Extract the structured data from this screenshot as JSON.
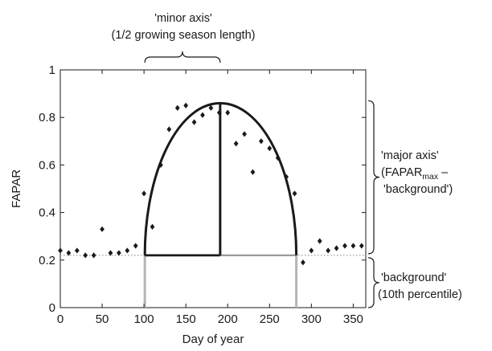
{
  "chart_data": {
    "type": "scatter",
    "xlabel": "Day of year",
    "ylabel": "FAPAR",
    "xlim": [
      0,
      365
    ],
    "ylim": [
      0,
      1
    ],
    "x_ticks": [
      "0",
      "50",
      "100",
      "150",
      "200",
      "250",
      "300",
      "350"
    ],
    "y_ticks": [
      "0",
      "0.2",
      "0.4",
      "0.6",
      "0.8",
      "1"
    ],
    "grid": false,
    "series": [
      {
        "marker": "diamond",
        "color": "#1a1a1a",
        "x": [
          0,
          10,
          20,
          30,
          40,
          50,
          60,
          70,
          80,
          90,
          100,
          110,
          120,
          130,
          140,
          150,
          160,
          170,
          180,
          190,
          200,
          210,
          220,
          230,
          240,
          250,
          260,
          270,
          280,
          290,
          300,
          310,
          320,
          330,
          340,
          350,
          360
        ],
        "y": [
          0.24,
          0.23,
          0.24,
          0.22,
          0.22,
          0.33,
          0.23,
          0.23,
          0.24,
          0.26,
          0.48,
          0.34,
          0.6,
          0.75,
          0.84,
          0.85,
          0.78,
          0.81,
          0.84,
          0.82,
          0.82,
          0.69,
          0.73,
          0.57,
          0.7,
          0.67,
          0.63,
          0.55,
          0.48,
          0.19,
          0.24,
          0.28,
          0.24,
          0.25,
          0.26,
          0.26,
          0.26
        ]
      }
    ],
    "fitted_curve": {
      "shape": "half-ellipse",
      "start_day": 101,
      "peak_day": 191,
      "end_day": 282,
      "peak_value": 0.86,
      "background_value": 0.22,
      "color": "#1a1a1a"
    },
    "background_line": {
      "value": 0.22,
      "style": "dotted",
      "color": "#999999"
    },
    "guide_lines": {
      "days": [
        101,
        282
      ],
      "color": "#b5b5b5"
    },
    "minor_axis": {
      "from_day": 101,
      "to_day": 191
    },
    "annotations": {
      "minor_axis_line1": "'minor axis'",
      "minor_axis_line2": "(1/2 growing season length)",
      "major_axis_line1": "'major axis'",
      "major_axis_line2_prefix": "(FAPAR",
      "major_axis_line2_sub": "max",
      "major_axis_line2_suffix": " –",
      "major_axis_line3": "'background')",
      "background_line1": "'background'",
      "background_line2": "(10th percentile)"
    }
  }
}
